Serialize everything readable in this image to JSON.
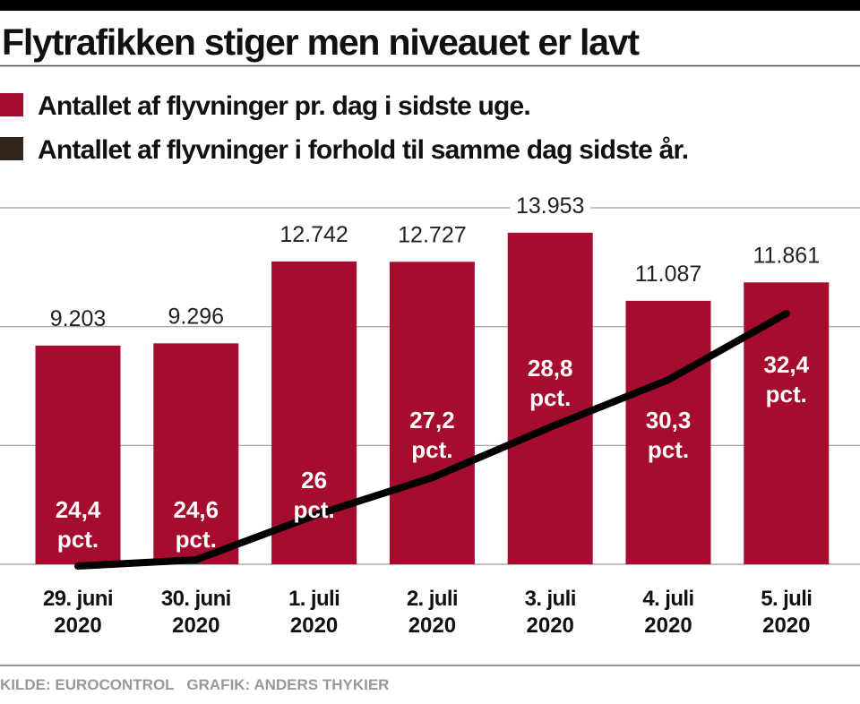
{
  "title": "Flytrafikken stiger men niveauet er lavt",
  "legend": [
    {
      "label": "Antallet af flyvninger pr. dag i sidste uge.",
      "color": "#a50c2e"
    },
    {
      "label": "Antallet af flyvninger i forhold til samme dag sidste år.",
      "color": "#33251a"
    }
  ],
  "footer": "KILDE: EUROCONTROL   GRAFIK: ANDERS THYKIER",
  "chart_data": {
    "type": "bar",
    "title": "Flytrafikken stiger men niveauet er lavt",
    "categories": [
      [
        "29. juni",
        "2020"
      ],
      [
        "30. juni",
        "2020"
      ],
      [
        "1. juli",
        "2020"
      ],
      [
        "2. juli",
        "2020"
      ],
      [
        "3. juli",
        "2020"
      ],
      [
        "4. juli",
        "2020"
      ],
      [
        "5. juli",
        "2020"
      ]
    ],
    "series": [
      {
        "name": "Antallet af flyvninger pr. dag i sidste uge.",
        "type": "bar",
        "color": "#a50c2e",
        "values": [
          9203,
          9296,
          12742,
          12727,
          13953,
          11087,
          11861
        ],
        "labels": [
          "9.203",
          "9.296",
          "12.742",
          "12.727",
          "13.953",
          "11.087",
          "11.861"
        ]
      },
      {
        "name": "Antallet af flyvninger i forhold til samme dag sidste år.",
        "type": "line",
        "color": "#000000",
        "unit": "pct.",
        "values": [
          24.4,
          24.6,
          26,
          27.2,
          28.8,
          30.3,
          32.4
        ],
        "labels": [
          "24,4",
          "24,6",
          "26",
          "27,2",
          "28,8",
          "30,3",
          "32,4"
        ]
      }
    ],
    "ylim": [
      0,
      15000
    ],
    "gridlines": [
      5000,
      10000,
      15000
    ],
    "grid": true,
    "legend_position": "top-left"
  }
}
